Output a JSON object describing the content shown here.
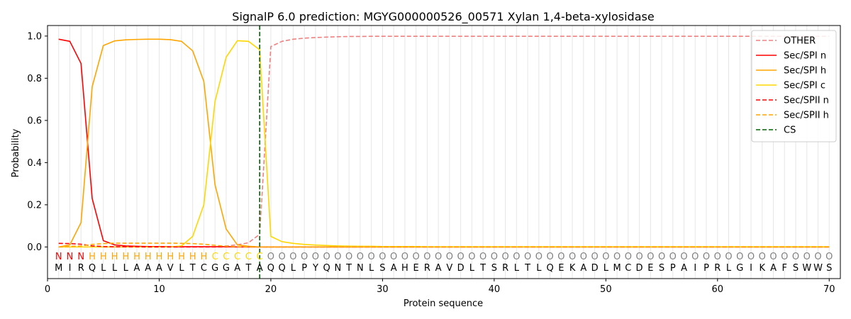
{
  "chart_data": {
    "type": "line",
    "title": "SignalP 6.0 prediction: MGYG000000526_00571 Xylan 1,4-beta-xylosidase",
    "xlabel": "Protein sequence",
    "ylabel": "Probability",
    "xlim": [
      0,
      71
    ],
    "ylim": [
      -0.15,
      1.05
    ],
    "xticks": [
      0,
      10,
      20,
      30,
      40,
      50,
      60,
      70
    ],
    "yticks": [
      0.0,
      0.2,
      0.4,
      0.6,
      0.8,
      1.0
    ],
    "ytick_labels": [
      "0.0",
      "0.2",
      "0.4",
      "0.6",
      "0.8",
      "1.0"
    ],
    "legend_position": "top-right",
    "grid": "vertical lines at each residue",
    "sequence": "MIRQLLLAAAVLTCGGATAQQLPYQNTNLSAHERAVDLTSRLTLQEKADLMCDESPAIPRLGIKAFSWWS",
    "labels": "NNNHHHHHHHHHHHCCCCCOOOOOOOOOOOOOOOOOOOOOOOOOOOOOOOOOOOOOOOOOOOOOOOOOOO",
    "label_colors": {
      "N": "#ff0000",
      "H": "#ffa500",
      "C": "#ffd700",
      "O": "#808080"
    },
    "cleavage_site": 19,
    "x": [
      1,
      2,
      3,
      4,
      5,
      6,
      7,
      8,
      9,
      10,
      11,
      12,
      13,
      14,
      15,
      16,
      17,
      18,
      19,
      20,
      21,
      22,
      23,
      24,
      25,
      26,
      27,
      28,
      29,
      30,
      31,
      32,
      33,
      34,
      35,
      36,
      37,
      38,
      39,
      40,
      41,
      42,
      43,
      44,
      45,
      46,
      47,
      48,
      49,
      50,
      51,
      52,
      53,
      54,
      55,
      56,
      57,
      58,
      59,
      60,
      61,
      62,
      63,
      64,
      65,
      66,
      67,
      68,
      69,
      70
    ],
    "series": [
      {
        "name": "OTHER",
        "color": "#f08080",
        "dash": "dashed",
        "values": [
          0.0,
          0.0,
          0.0,
          0.0,
          0.0,
          0.0,
          0.0,
          0.0,
          0.0,
          0.0,
          0.0,
          0.0,
          0.0,
          0.0,
          0.0,
          0.005,
          0.01,
          0.02,
          0.06,
          0.95,
          0.975,
          0.985,
          0.99,
          0.993,
          0.995,
          0.997,
          0.998,
          0.998,
          0.999,
          0.999,
          0.999,
          0.999,
          0.999,
          0.999,
          0.999,
          0.999,
          0.999,
          0.999,
          0.999,
          0.999,
          0.999,
          0.999,
          0.999,
          0.999,
          0.999,
          0.999,
          0.999,
          0.999,
          0.999,
          0.999,
          0.999,
          0.999,
          0.999,
          0.999,
          0.999,
          0.999,
          0.999,
          0.999,
          0.999,
          0.999,
          0.999,
          0.999,
          0.999,
          0.999,
          0.999,
          0.999,
          0.999,
          0.999,
          0.999,
          0.999
        ]
      },
      {
        "name": "Sec/SPI n",
        "color": "#ff0000",
        "dash": "solid",
        "values": [
          0.985,
          0.975,
          0.87,
          0.23,
          0.03,
          0.01,
          0.005,
          0.003,
          0.002,
          0.002,
          0.001,
          0.001,
          0.001,
          0.001,
          0.001,
          0.001,
          0.0,
          0.0,
          0.0,
          0.0,
          0.0,
          0.0,
          0.0,
          0.0,
          0.0,
          0.0,
          0.0,
          0.0,
          0.0,
          0.0,
          0.0,
          0.0,
          0.0,
          0.0,
          0.0,
          0.0,
          0.0,
          0.0,
          0.0,
          0.0,
          0.0,
          0.0,
          0.0,
          0.0,
          0.0,
          0.0,
          0.0,
          0.0,
          0.0,
          0.0,
          0.0,
          0.0,
          0.0,
          0.0,
          0.0,
          0.0,
          0.0,
          0.0,
          0.0,
          0.0,
          0.0,
          0.0,
          0.0,
          0.0,
          0.0,
          0.0,
          0.0,
          0.0,
          0.0,
          0.0
        ]
      },
      {
        "name": "Sec/SPI h",
        "color": "#ffa500",
        "dash": "solid",
        "values": [
          0.0,
          0.01,
          0.115,
          0.76,
          0.955,
          0.977,
          0.982,
          0.984,
          0.985,
          0.985,
          0.983,
          0.975,
          0.93,
          0.785,
          0.295,
          0.085,
          0.01,
          0.003,
          0.0,
          0.0,
          0.0,
          0.0,
          0.0,
          0.0,
          0.0,
          0.0,
          0.0,
          0.0,
          0.0,
          0.0,
          0.0,
          0.0,
          0.0,
          0.0,
          0.0,
          0.0,
          0.0,
          0.0,
          0.0,
          0.0,
          0.0,
          0.0,
          0.0,
          0.0,
          0.0,
          0.0,
          0.0,
          0.0,
          0.0,
          0.0,
          0.0,
          0.0,
          0.0,
          0.0,
          0.0,
          0.0,
          0.0,
          0.0,
          0.0,
          0.0,
          0.0,
          0.0,
          0.0,
          0.0,
          0.0,
          0.0,
          0.0,
          0.0,
          0.0,
          0.0
        ]
      },
      {
        "name": "Sec/SPI c",
        "color": "#ffd700",
        "dash": "solid",
        "values": [
          0.0,
          0.0,
          0.0,
          0.0,
          0.0,
          0.0,
          0.0,
          0.0,
          0.0,
          0.0,
          0.0,
          0.005,
          0.05,
          0.2,
          0.69,
          0.9,
          0.978,
          0.975,
          0.935,
          0.05,
          0.025,
          0.017,
          0.012,
          0.009,
          0.007,
          0.005,
          0.004,
          0.003,
          0.003,
          0.002,
          0.002,
          0.002,
          0.002,
          0.001,
          0.001,
          0.001,
          0.001,
          0.001,
          0.001,
          0.001,
          0.001,
          0.001,
          0.001,
          0.001,
          0.001,
          0.001,
          0.001,
          0.001,
          0.001,
          0.001,
          0.001,
          0.001,
          0.001,
          0.001,
          0.001,
          0.001,
          0.001,
          0.001,
          0.001,
          0.001,
          0.001,
          0.001,
          0.001,
          0.001,
          0.001,
          0.001,
          0.001,
          0.001,
          0.001,
          0.001
        ]
      },
      {
        "name": "Sec/SPII n",
        "color": "#ff0000",
        "dash": "dashed",
        "values": [
          0.017,
          0.016,
          0.013,
          0.005,
          0.002,
          0.001,
          0.001,
          0.001,
          0.0,
          0.0,
          0.0,
          0.0,
          0.0,
          0.0,
          0.0,
          0.0,
          0.0,
          0.0,
          0.0,
          0.0,
          0.0,
          0.0,
          0.0,
          0.0,
          0.0,
          0.0,
          0.0,
          0.0,
          0.0,
          0.0,
          0.0,
          0.0,
          0.0,
          0.0,
          0.0,
          0.0,
          0.0,
          0.0,
          0.0,
          0.0,
          0.0,
          0.0,
          0.0,
          0.0,
          0.0,
          0.0,
          0.0,
          0.0,
          0.0,
          0.0,
          0.0,
          0.0,
          0.0,
          0.0,
          0.0,
          0.0,
          0.0,
          0.0,
          0.0,
          0.0,
          0.0,
          0.0,
          0.0,
          0.0,
          0.0,
          0.0,
          0.0,
          0.0,
          0.0,
          0.0
        ]
      },
      {
        "name": "Sec/SPII h",
        "color": "#ffa500",
        "dash": "dashed",
        "values": [
          0.0,
          0.003,
          0.005,
          0.012,
          0.016,
          0.018,
          0.018,
          0.018,
          0.018,
          0.018,
          0.018,
          0.017,
          0.016,
          0.013,
          0.008,
          0.003,
          0.001,
          0.0,
          0.0,
          0.0,
          0.0,
          0.0,
          0.0,
          0.0,
          0.0,
          0.0,
          0.0,
          0.0,
          0.0,
          0.0,
          0.0,
          0.0,
          0.0,
          0.0,
          0.0,
          0.0,
          0.0,
          0.0,
          0.0,
          0.0,
          0.0,
          0.0,
          0.0,
          0.0,
          0.0,
          0.0,
          0.0,
          0.0,
          0.0,
          0.0,
          0.0,
          0.0,
          0.0,
          0.0,
          0.0,
          0.0,
          0.0,
          0.0,
          0.0,
          0.0,
          0.0,
          0.0,
          0.0,
          0.0,
          0.0,
          0.0,
          0.0,
          0.0,
          0.0,
          0.0
        ]
      }
    ],
    "legend": [
      {
        "name": "OTHER",
        "color": "#f08080",
        "dash": "dashed"
      },
      {
        "name": "Sec/SPI n",
        "color": "#ff0000",
        "dash": "solid"
      },
      {
        "name": "Sec/SPI h",
        "color": "#ffa500",
        "dash": "solid"
      },
      {
        "name": "Sec/SPI c",
        "color": "#ffd700",
        "dash": "solid"
      },
      {
        "name": "Sec/SPII n",
        "color": "#ff0000",
        "dash": "dashed"
      },
      {
        "name": "Sec/SPII h",
        "color": "#ffa500",
        "dash": "dashed"
      },
      {
        "name": "CS",
        "color": "#006400",
        "dash": "dashed"
      }
    ]
  }
}
